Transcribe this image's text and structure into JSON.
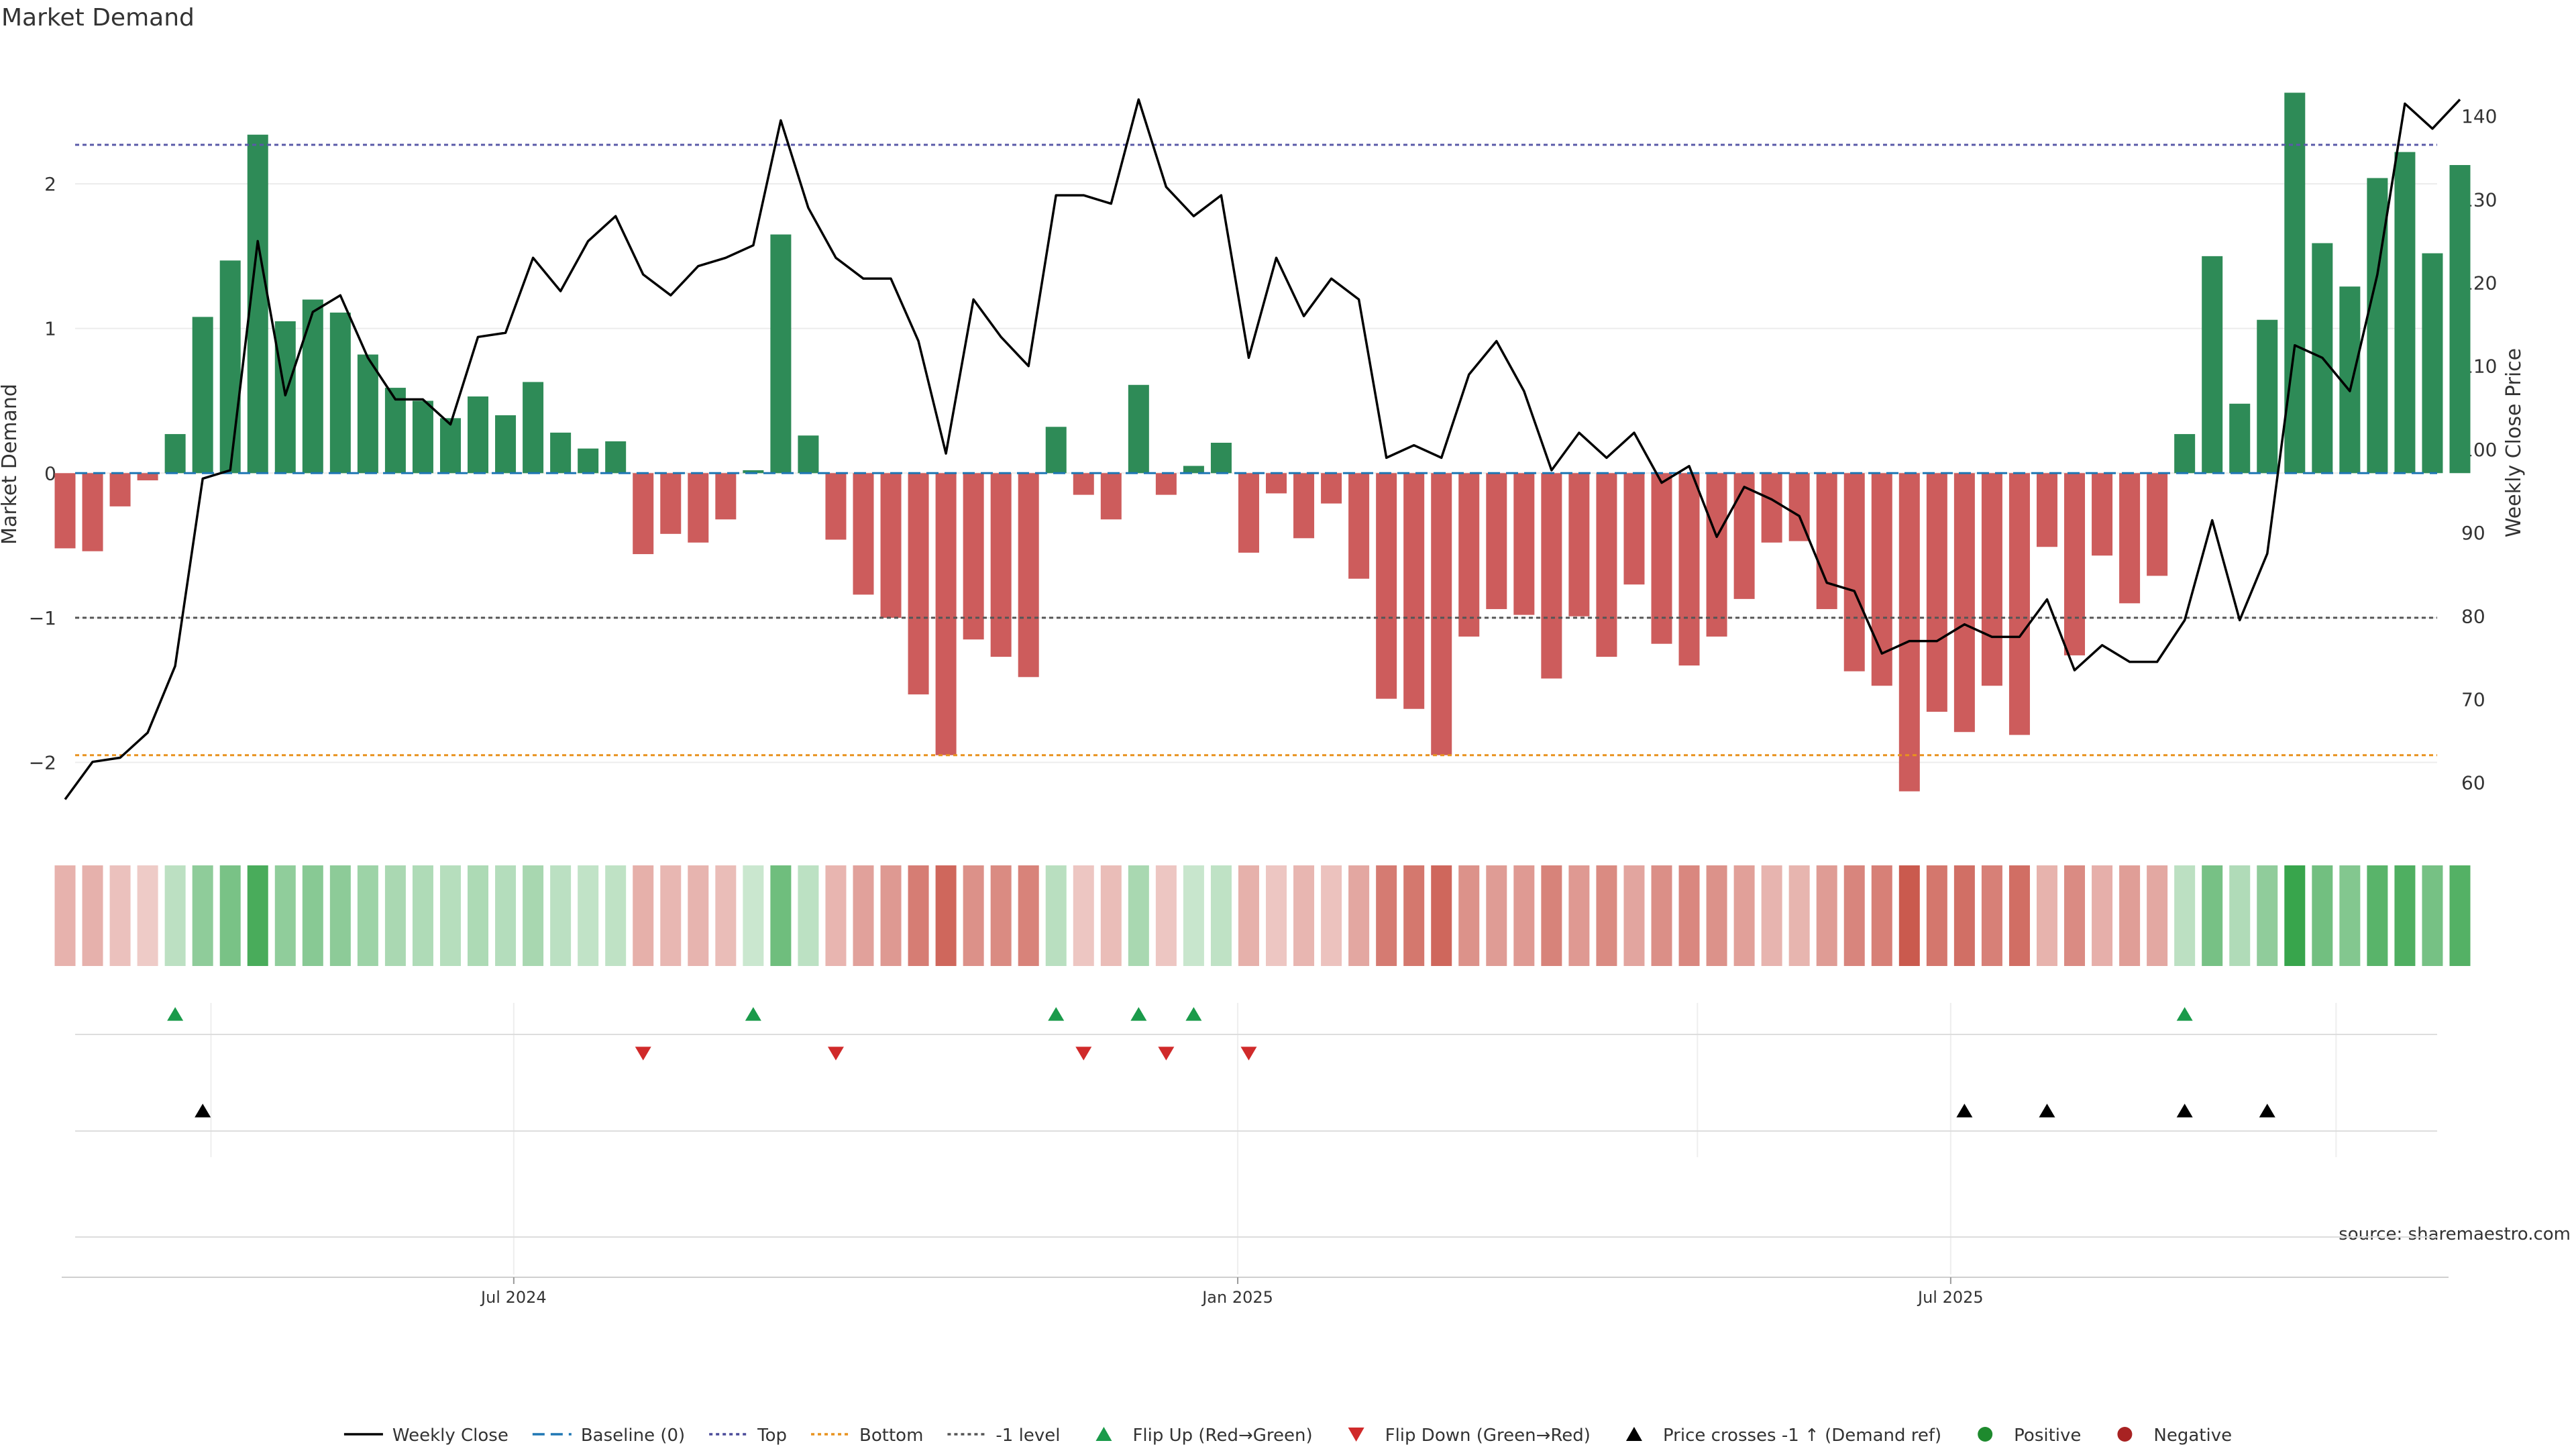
{
  "chart_data": {
    "type": "bar",
    "title": "Market Demand",
    "ylabel_left": "Market Demand",
    "ylabel_right": "Weekly Close Price",
    "left_ticks": [
      {
        "v": 2,
        "label": "2"
      },
      {
        "v": 1,
        "label": "1"
      },
      {
        "v": 0,
        "label": "0"
      },
      {
        "v": -1,
        "label": "−1"
      },
      {
        "v": -2,
        "label": "−2"
      }
    ],
    "right_ticks": [
      60,
      70,
      80,
      90,
      100,
      110,
      120,
      130,
      140
    ],
    "ylim_left": [
      -2.48,
      2.9
    ],
    "ylim_right": [
      54.1,
      147.5
    ],
    "reference_lines": {
      "top": 2.27,
      "bottom": -1.95,
      "minus_one": -1.0,
      "baseline": 0
    },
    "month_labels": [
      {
        "label": "Jul 2024",
        "week": 16.3
      },
      {
        "label": "Jan 2025",
        "week": 42.6
      },
      {
        "label": "Jul 2025",
        "week": 68.5
      }
    ],
    "n_weeks": 88,
    "demand": [
      -0.52,
      -0.54,
      -0.23,
      -0.05,
      0.27,
      1.08,
      1.47,
      2.34,
      1.05,
      1.2,
      1.11,
      0.82,
      0.59,
      0.5,
      0.38,
      0.53,
      0.4,
      0.63,
      0.28,
      0.17,
      0.22,
      -0.56,
      -0.42,
      -0.48,
      -0.32,
      0.02,
      1.65,
      0.26,
      -0.46,
      -0.84,
      -1.0,
      -1.53,
      -1.95,
      -1.15,
      -1.27,
      -1.41,
      0.32,
      -0.15,
      -0.32,
      0.61,
      -0.15,
      0.05,
      0.21,
      -0.55,
      -0.14,
      -0.45,
      -0.21,
      -0.73,
      -1.56,
      -1.63,
      -1.95,
      -1.13,
      -0.94,
      -0.98,
      -1.42,
      -0.99,
      -1.27,
      -0.77,
      -1.18,
      -1.33,
      -1.13,
      -0.87,
      -0.48,
      -0.47,
      -0.94,
      -1.37,
      -1.47,
      -2.2,
      -1.65,
      -1.79,
      -1.47,
      -1.81,
      -0.51,
      -1.26,
      -0.57,
      -0.9,
      -0.71,
      0.27,
      1.5,
      0.48,
      1.06,
      2.63,
      1.59,
      1.29,
      2.04,
      2.22,
      1.52,
      2.13
    ],
    "price": [
      58,
      62.5,
      63,
      66,
      74,
      96.5,
      97.5,
      125,
      106.5,
      116.5,
      118.5,
      111,
      106,
      106,
      103,
      113.5,
      114,
      123,
      119,
      125,
      128,
      121,
      118.5,
      122,
      123,
      124.5,
      139.5,
      129,
      123,
      120.5,
      120.5,
      113,
      99.5,
      118,
      113.5,
      110,
      130.5,
      130.5,
      129.5,
      142,
      131.5,
      128,
      130.5,
      111,
      123,
      116,
      120.5,
      118,
      99,
      100.5,
      99,
      109,
      113,
      107,
      97.5,
      102,
      99,
      102,
      96,
      98,
      89.5,
      95.5,
      94,
      92,
      84,
      83,
      75.5,
      77,
      77,
      79,
      77.5,
      77.5,
      82,
      73.5,
      76.5,
      74.5,
      74.5,
      79.5,
      91.5,
      79.5,
      87.5,
      112.5,
      111,
      107,
      121,
      141.5,
      138.5,
      142
    ],
    "flip_up_weeks": [
      4,
      25,
      36,
      39,
      41,
      77
    ],
    "flip_down_weeks": [
      21,
      28,
      37,
      40,
      43
    ],
    "price_cross_weeks": [
      5,
      69,
      72,
      77,
      80
    ],
    "legend": [
      {
        "type": "line",
        "color": "#000000",
        "dash": "",
        "label": "Weekly Close"
      },
      {
        "type": "line",
        "color": "#1f77b4",
        "dash": "18,9",
        "label": "Baseline (0)"
      },
      {
        "type": "line",
        "color": "#4b4b9a",
        "dash": "5,5",
        "label": "Top"
      },
      {
        "type": "line",
        "color": "#e8921e",
        "dash": "5,5",
        "label": "Bottom"
      },
      {
        "type": "line",
        "color": "#555555",
        "dash": "5,5",
        "label": "-1 level"
      },
      {
        "type": "tri-up",
        "color": "#1a9a4a",
        "label": "Flip Up (Red→Green)"
      },
      {
        "type": "tri-down",
        "color": "#d02a2a",
        "label": "Flip Down (Green→Red)"
      },
      {
        "type": "tri-up",
        "color": "#000000",
        "label": "Price crosses -1 ↑ (Demand ref)"
      },
      {
        "type": "dot",
        "color": "#1e8a2e",
        "label": "Positive"
      },
      {
        "type": "dot",
        "color": "#a82222",
        "label": "Negative"
      }
    ],
    "source": "source: sharemaestro.com"
  },
  "colors": {
    "positive_bar": "#2e8b57",
    "negative_bar": "#cd5c5c",
    "price_line": "#000000",
    "top_line": "#5a5aa8",
    "bottom_line": "#e8921e",
    "minus_one_line": "#555555",
    "baseline": "#1f77b4",
    "flip_up": "#1a9a4a",
    "flip_down": "#d02a2a",
    "price_cross": "#000000"
  }
}
